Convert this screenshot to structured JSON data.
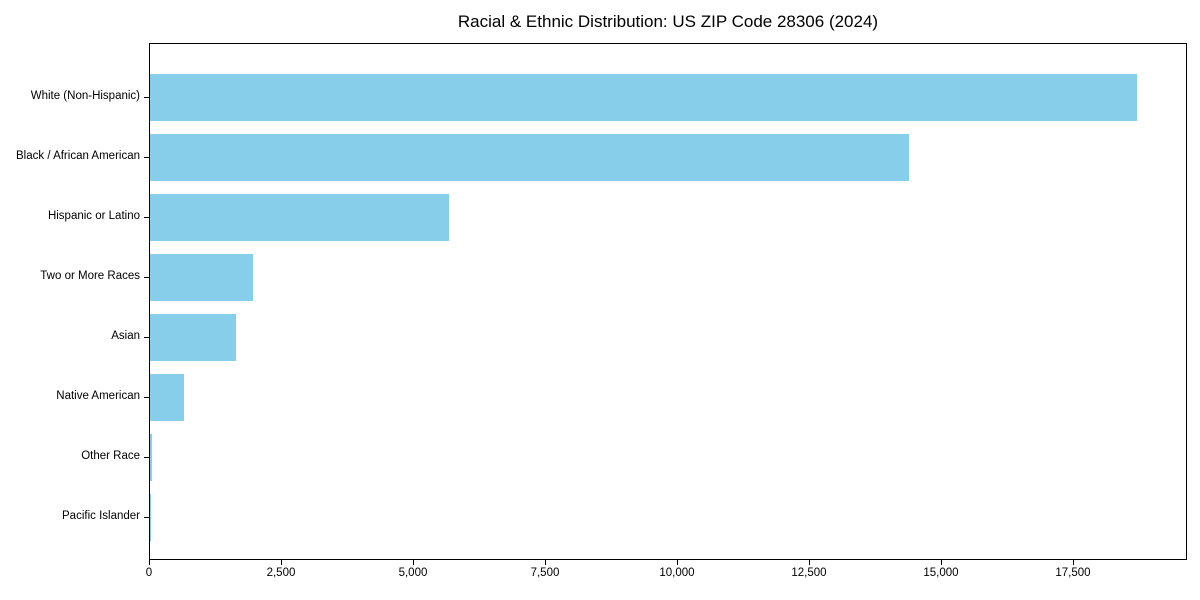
{
  "chart_data": {
    "type": "bar",
    "orientation": "horizontal",
    "title": "Racial & Ethnic Distribution: US ZIP Code 28306 (2024)",
    "categories": [
      "White (Non-Hispanic)",
      "Black / African American",
      "Hispanic or Latino",
      "Two or More Races",
      "Asian",
      "Native American",
      "Other Race",
      "Pacific Islander"
    ],
    "values": [
      18700,
      14370,
      5660,
      1960,
      1620,
      650,
      30,
      15
    ],
    "xlabel": "",
    "ylabel": "",
    "xlim": [
      0,
      19660
    ],
    "xticks": [
      0,
      2500,
      5000,
      7500,
      10000,
      12500,
      15000,
      17500
    ],
    "xtick_labels": [
      "0",
      "2,500",
      "5,000",
      "7,500",
      "10,000",
      "12,500",
      "15,000",
      "17,500"
    ],
    "bar_color": "#87CEEB",
    "axis_color": "#000000",
    "grid": false,
    "legend_position": "none"
  }
}
